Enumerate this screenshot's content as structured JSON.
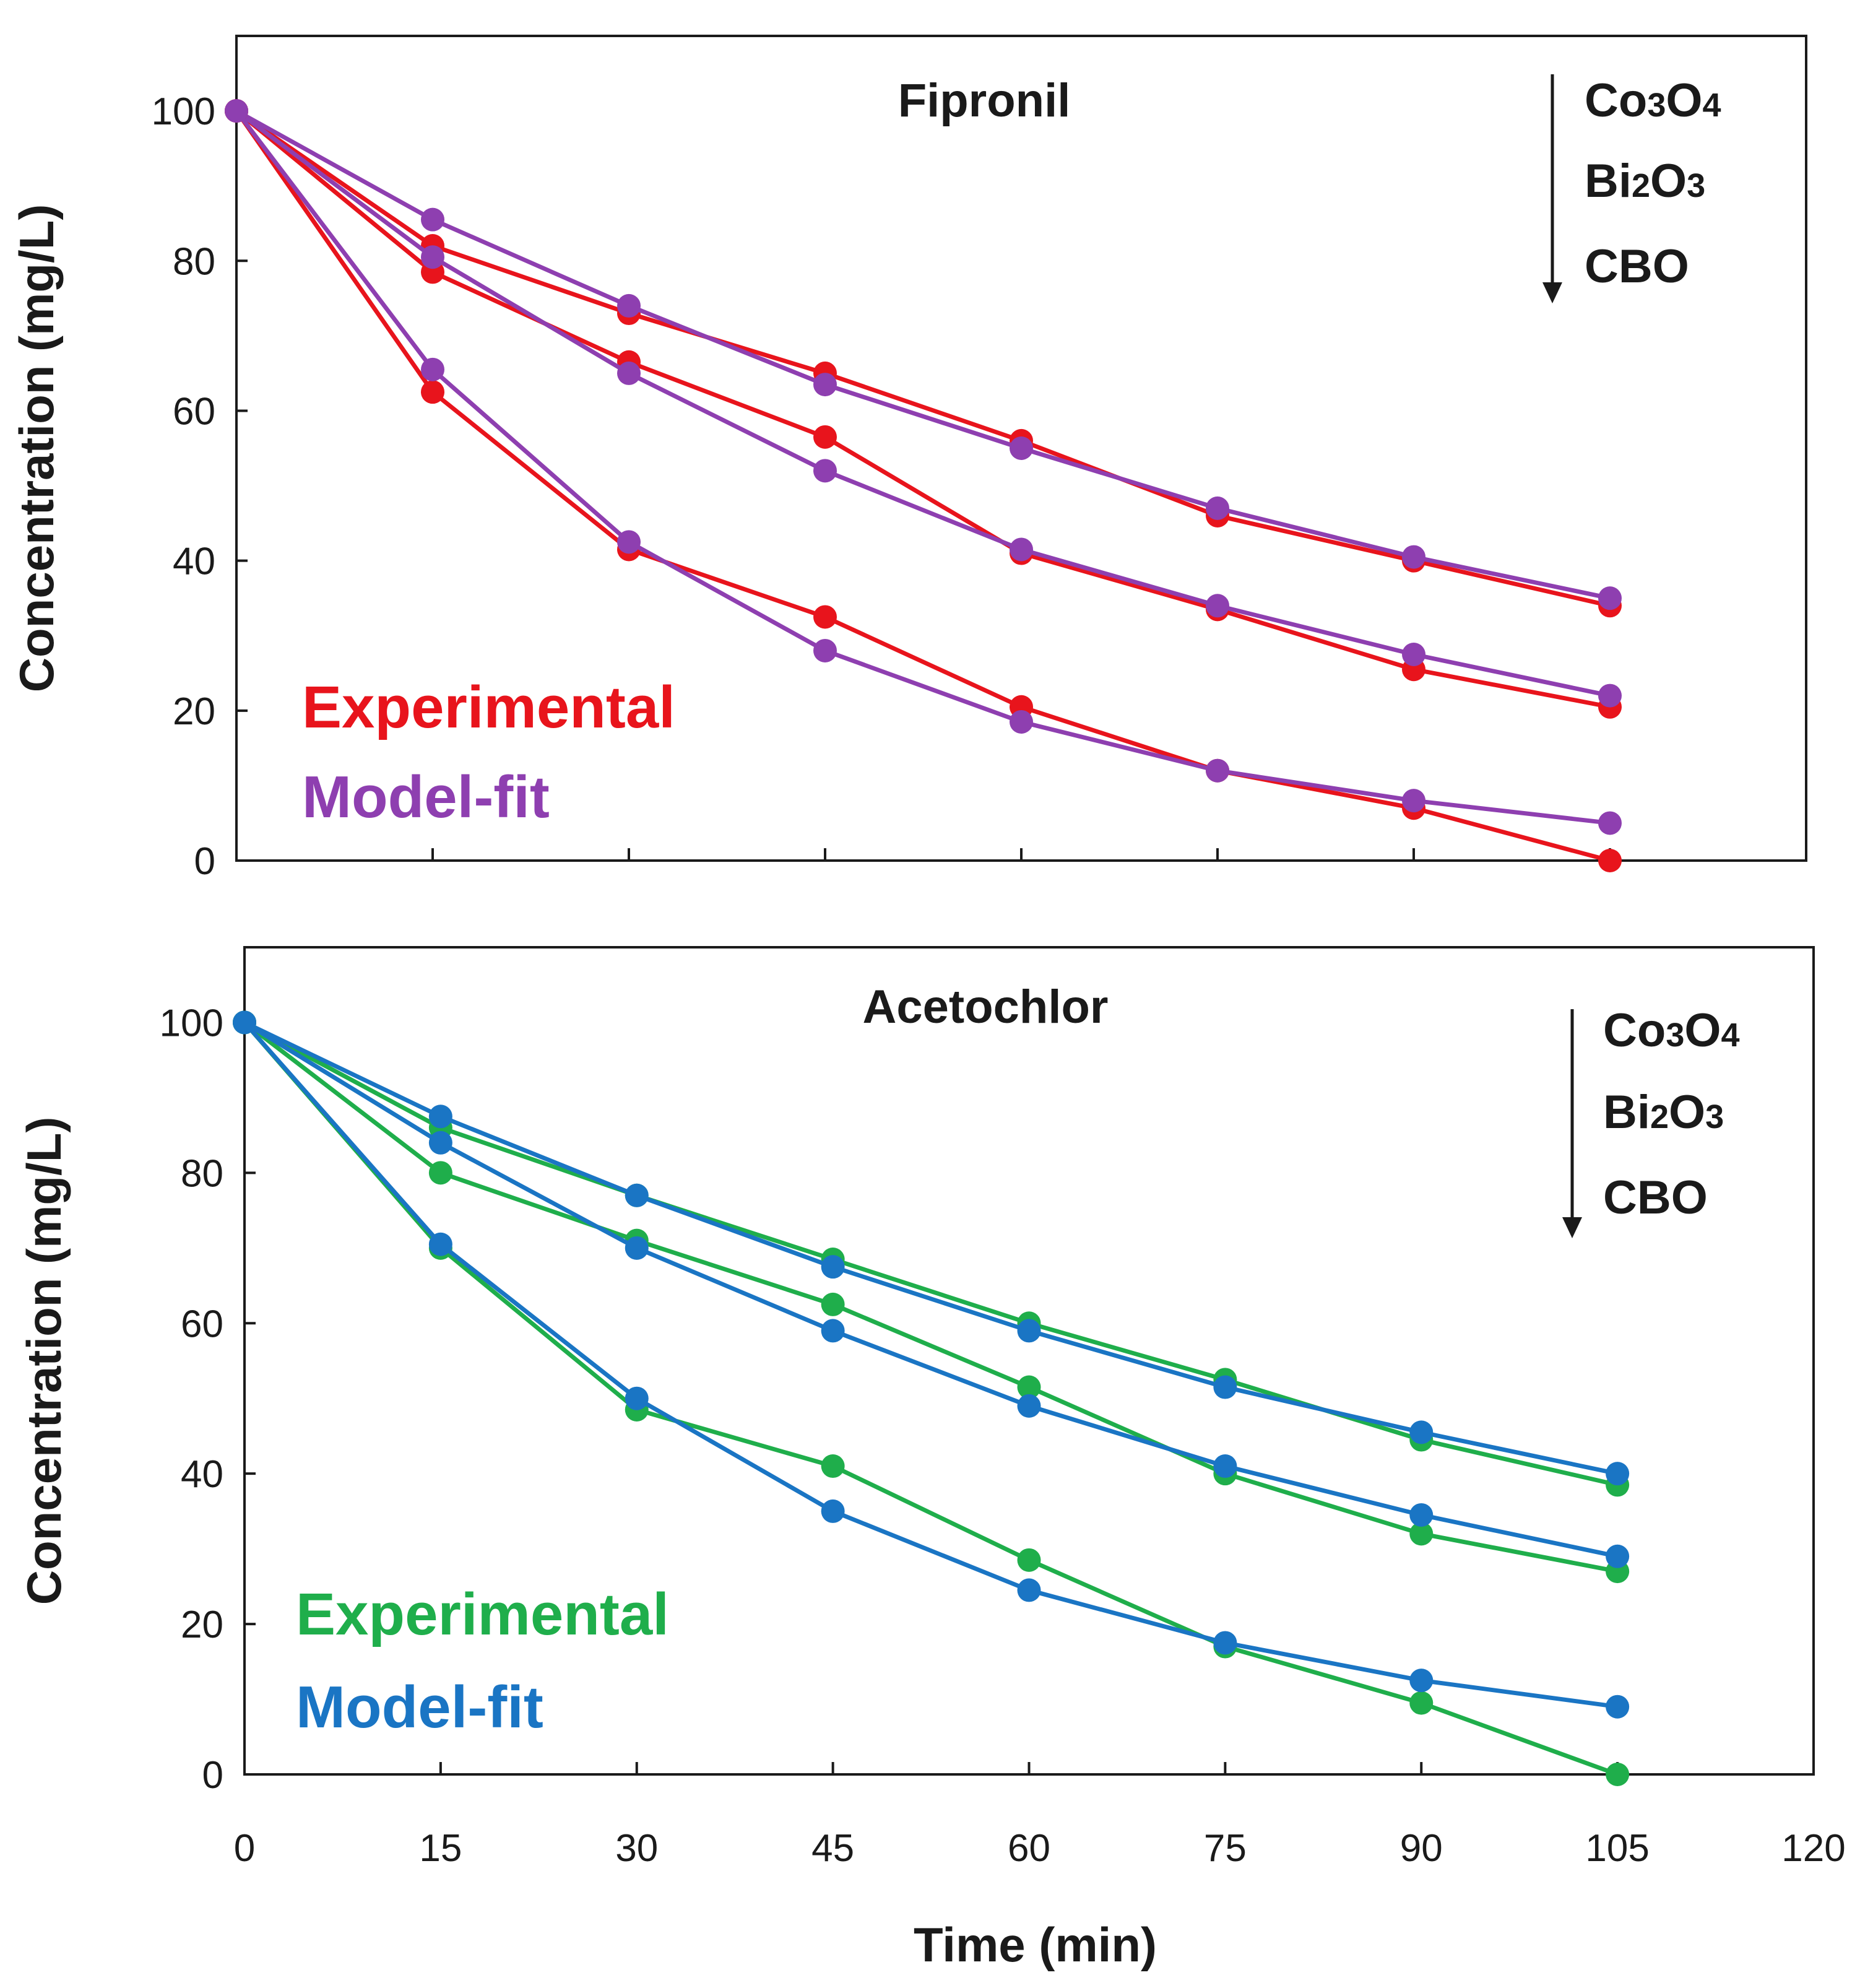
{
  "chart_data": [
    {
      "type": "line",
      "title": "Fipronil",
      "ylabel": "Concentration (mg/L)",
      "xlabel": "",
      "x": [
        0,
        15,
        30,
        45,
        60,
        75,
        90,
        105
      ],
      "xlim": [
        0,
        120
      ],
      "ylim": [
        0,
        110
      ],
      "yticks": [
        0,
        20,
        40,
        60,
        80,
        100
      ],
      "xticks": [
        15,
        30,
        45,
        60,
        75,
        90,
        105
      ],
      "grid": false,
      "legend_placement": "bottom-left",
      "legend": [
        {
          "label": "Experimental",
          "color": "#e8141c"
        },
        {
          "label": "Model-fit",
          "color": "#8e3fb0"
        }
      ],
      "catalyst_order": [
        {
          "base": "Co",
          "sub1": "3",
          "mid": "O",
          "sub2": "4"
        },
        {
          "base": "Bi",
          "sub1": "2",
          "mid": "O",
          "sub2": "3"
        },
        {
          "base": "CBO",
          "sub1": "",
          "mid": "",
          "sub2": ""
        }
      ],
      "series": [
        {
          "group": "Experimental",
          "color": "#e8141c",
          "values": [
            100,
            82,
            73,
            65,
            56,
            46,
            40,
            34
          ]
        },
        {
          "group": "Model-fit",
          "color": "#8e3fb0",
          "values": [
            100,
            85.5,
            74,
            63.5,
            55,
            47,
            40.5,
            35
          ]
        },
        {
          "group": "Experimental",
          "color": "#e8141c",
          "values": [
            100,
            78.5,
            66.5,
            56.5,
            41,
            33.5,
            25.5,
            20.5
          ]
        },
        {
          "group": "Model-fit",
          "color": "#8e3fb0",
          "values": [
            100,
            80.5,
            65,
            52,
            41.5,
            34,
            27.5,
            22
          ]
        },
        {
          "group": "Experimental",
          "color": "#e8141c",
          "values": [
            100,
            62.5,
            41.5,
            32.5,
            20.5,
            12,
            7,
            0
          ]
        },
        {
          "group": "Model-fit",
          "color": "#8e3fb0",
          "values": [
            100,
            65.5,
            42.5,
            28,
            18.5,
            12,
            8,
            5
          ]
        }
      ]
    },
    {
      "type": "line",
      "title": "Acetochlor",
      "ylabel": "Concentration (mg/L)",
      "xlabel": "Time (min)",
      "x": [
        0,
        15,
        30,
        45,
        60,
        75,
        90,
        105
      ],
      "xlim": [
        0,
        120
      ],
      "ylim": [
        0,
        110
      ],
      "yticks": [
        0,
        20,
        40,
        60,
        80,
        100
      ],
      "xticks": [
        0,
        15,
        30,
        45,
        60,
        75,
        90,
        105,
        120
      ],
      "grid": false,
      "legend_placement": "bottom-left",
      "legend": [
        {
          "label": "Experimental",
          "color": "#1fae4b"
        },
        {
          "label": "Model-fit",
          "color": "#1a75c4"
        }
      ],
      "catalyst_order": [
        {
          "base": "Co",
          "sub1": "3",
          "mid": "O",
          "sub2": "4"
        },
        {
          "base": "Bi",
          "sub1": "2",
          "mid": "O",
          "sub2": "3"
        },
        {
          "base": "CBO",
          "sub1": "",
          "mid": "",
          "sub2": ""
        }
      ],
      "series": [
        {
          "group": "Experimental",
          "color": "#1fae4b",
          "values": [
            100,
            86,
            77,
            68.5,
            60,
            52.5,
            44.5,
            38.5
          ]
        },
        {
          "group": "Model-fit",
          "color": "#1a75c4",
          "values": [
            100,
            87.5,
            77,
            67.5,
            59,
            51.5,
            45.5,
            40
          ]
        },
        {
          "group": "Experimental",
          "color": "#1fae4b",
          "values": [
            100,
            80,
            71,
            62.5,
            51.5,
            40,
            32,
            27
          ]
        },
        {
          "group": "Model-fit",
          "color": "#1a75c4",
          "values": [
            100,
            84,
            70,
            59,
            49,
            41,
            34.5,
            29
          ]
        },
        {
          "group": "Experimental",
          "color": "#1fae4b",
          "values": [
            100,
            70,
            48.5,
            41,
            28.5,
            17,
            9.5,
            0
          ]
        },
        {
          "group": "Model-fit",
          "color": "#1a75c4",
          "values": [
            100,
            70.5,
            50,
            35,
            24.5,
            17.5,
            12.5,
            9
          ]
        }
      ]
    }
  ]
}
